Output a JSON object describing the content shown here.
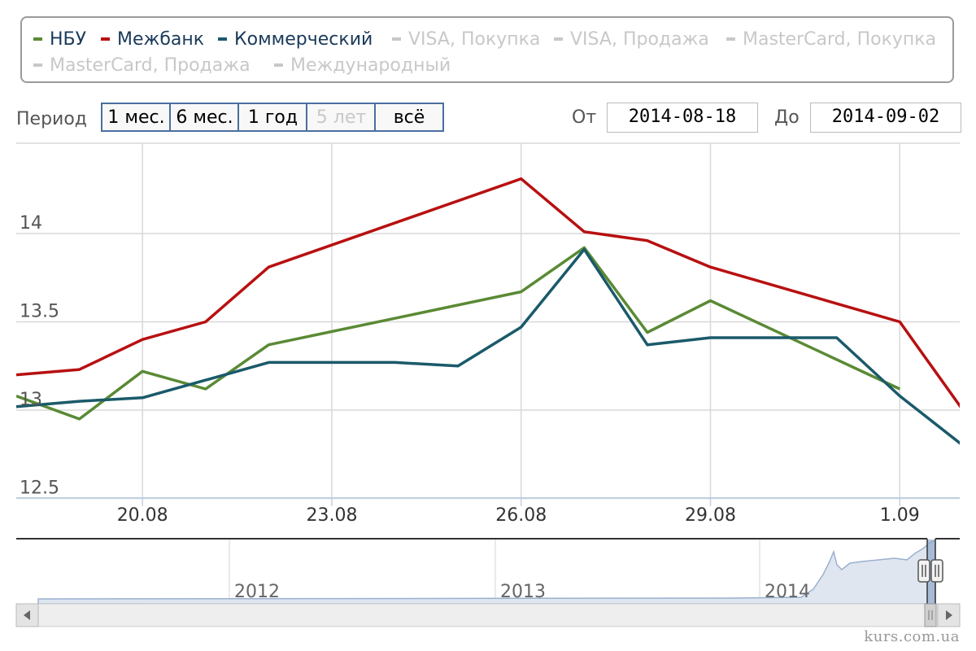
{
  "legend": {
    "items": [
      {
        "label": "НБУ",
        "color": "#5a8a35",
        "visible": true
      },
      {
        "label": "Межбанк",
        "color": "#b81010",
        "visible": true
      },
      {
        "label": "Коммерческий",
        "color": "#1a5a6a",
        "visible": true
      },
      {
        "label": "VISA, Покупка",
        "color": "#c8c8c8",
        "visible": false
      },
      {
        "label": "VISA, Продажа",
        "color": "#c8c8c8",
        "visible": false
      },
      {
        "label": "MasterCard, Покупка",
        "color": "#c8c8c8",
        "visible": false
      },
      {
        "label": "MasterCard, Продажа",
        "color": "#c8c8c8",
        "visible": false
      },
      {
        "label": "Международный",
        "color": "#c8c8c8",
        "visible": false
      }
    ]
  },
  "range_selector": {
    "period_label": "Период",
    "buttons": [
      {
        "label": "1 мес.",
        "enabled": true
      },
      {
        "label": "6 мес.",
        "enabled": true
      },
      {
        "label": "1 год",
        "enabled": true
      },
      {
        "label": "5 лет",
        "enabled": false
      },
      {
        "label": "всё",
        "enabled": true
      }
    ],
    "from_label": "От",
    "from_value": "2014-08-18",
    "to_label": "До",
    "to_value": "2014-09-02"
  },
  "chart_data": {
    "type": "line",
    "x_start": "18.08",
    "x_end": "2.09",
    "x_ticks": [
      "20.08",
      "23.08",
      "26.08",
      "29.08",
      "1.09"
    ],
    "y_ticks": [
      "12.5",
      "13",
      "13.5",
      "14"
    ],
    "ylim": [
      12.5,
      14.5
    ],
    "grid": true,
    "series": [
      {
        "name": "НБУ",
        "color": "#5a8a35",
        "points": [
          [
            "18.08",
            13.08
          ],
          [
            "19.08",
            12.95
          ],
          [
            "20.08",
            13.22
          ],
          [
            "21.08",
            13.12
          ],
          [
            "22.08",
            13.37
          ],
          [
            "26.08",
            13.67
          ],
          [
            "27.08",
            13.92
          ],
          [
            "28.08",
            13.44
          ],
          [
            "29.08",
            13.62
          ],
          [
            "1.09",
            13.12
          ]
        ]
      },
      {
        "name": "Межбанк",
        "color": "#b81010",
        "points": [
          [
            "18.08",
            13.2
          ],
          [
            "19.08",
            13.23
          ],
          [
            "20.08",
            13.4
          ],
          [
            "21.08",
            13.5
          ],
          [
            "22.08",
            13.81
          ],
          [
            "26.08",
            14.31
          ],
          [
            "27.08",
            14.01
          ],
          [
            "28.08",
            13.96
          ],
          [
            "29.08",
            13.81
          ],
          [
            "1.09",
            13.5
          ],
          [
            "2.09",
            13.0
          ]
        ]
      },
      {
        "name": "Коммерческий",
        "color": "#1a5a6a",
        "points": [
          [
            "18.08",
            13.02
          ],
          [
            "19.08",
            13.05
          ],
          [
            "20.08",
            13.07
          ],
          [
            "21.08",
            13.17
          ],
          [
            "22.08",
            13.27
          ],
          [
            "23.08",
            13.27
          ],
          [
            "24.08",
            13.27
          ],
          [
            "25.08",
            13.25
          ],
          [
            "26.08",
            13.47
          ],
          [
            "27.08",
            13.91
          ],
          [
            "28.08",
            13.37
          ],
          [
            "29.08",
            13.41
          ],
          [
            "30.08",
            13.41
          ],
          [
            "31.08",
            13.41
          ],
          [
            "1.09",
            13.08
          ],
          [
            "2.09",
            12.8
          ]
        ]
      }
    ]
  },
  "navigator": {
    "year_labels": [
      "2012",
      "2013",
      "2014"
    ]
  },
  "credits": "kurs.com.ua"
}
